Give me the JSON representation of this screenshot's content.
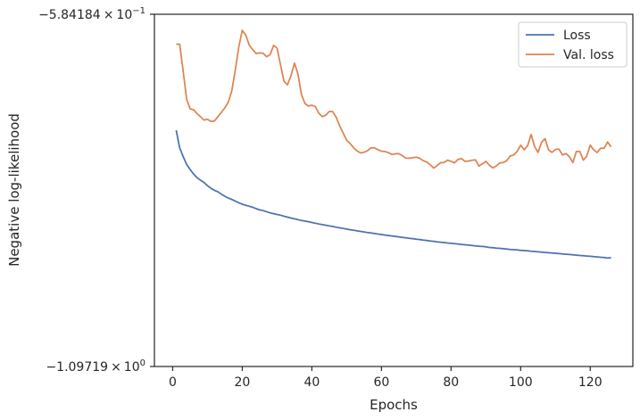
{
  "chart_data": {
    "type": "line",
    "title": "",
    "xlabel": "Epochs",
    "ylabel": "Negative log-likelihood",
    "xlim": [
      -5.25,
      132.25
    ],
    "x_ticks": [
      0,
      20,
      40,
      60,
      80,
      100,
      120
    ],
    "x_tick_labels": [
      "0",
      "20",
      "40",
      "60",
      "80",
      "100",
      "120"
    ],
    "ylim": [
      -1.09719,
      -0.584184
    ],
    "yscale": "symlog-like (top/bottom only labelled)",
    "y_tick_labels": {
      "top": {
        "mantissa": "−5.84184",
        "times": "×",
        "base": "10",
        "exp": "−1"
      },
      "bottom": {
        "mantissa": "−1.09719",
        "times": "×",
        "base": "10",
        "exp": "0"
      }
    },
    "legend": {
      "position": "top-right",
      "entries": [
        "Loss",
        "Val. loss"
      ]
    },
    "grid": false,
    "colors": {
      "Loss": "#4c72b0",
      "Val. loss": "#dd8452"
    },
    "series": [
      {
        "name": "Loss",
        "x": [
          1,
          2,
          3,
          4,
          5,
          6,
          7,
          8,
          9,
          10,
          11,
          12,
          13,
          14,
          15,
          16,
          17,
          18,
          19,
          20,
          21,
          22,
          23,
          24,
          25,
          26,
          27,
          28,
          29,
          30,
          31,
          32,
          33,
          34,
          35,
          36,
          37,
          38,
          39,
          40,
          41,
          42,
          43,
          44,
          45,
          46,
          47,
          48,
          49,
          50,
          51,
          52,
          53,
          54,
          55,
          56,
          57,
          58,
          59,
          60,
          61,
          62,
          63,
          64,
          65,
          66,
          67,
          68,
          69,
          70,
          71,
          72,
          73,
          74,
          75,
          76,
          77,
          78,
          79,
          80,
          81,
          82,
          83,
          84,
          85,
          86,
          87,
          88,
          89,
          90,
          91,
          92,
          93,
          94,
          95,
          96,
          97,
          98,
          99,
          100,
          101,
          102,
          103,
          104,
          105,
          106,
          107,
          108,
          109,
          110,
          111,
          112,
          113,
          114,
          115,
          116,
          117,
          118,
          119,
          120,
          121,
          122,
          123,
          124,
          125,
          126
        ],
        "values": [
          -0.7532,
          -0.7787,
          -0.7915,
          -0.8028,
          -0.8103,
          -0.8169,
          -0.8223,
          -0.8259,
          -0.8291,
          -0.8338,
          -0.8376,
          -0.8405,
          -0.8428,
          -0.8462,
          -0.8492,
          -0.8518,
          -0.8539,
          -0.8563,
          -0.8587,
          -0.8608,
          -0.8624,
          -0.8638,
          -0.8652,
          -0.8673,
          -0.8691,
          -0.8702,
          -0.8717,
          -0.8734,
          -0.8746,
          -0.8758,
          -0.8768,
          -0.8783,
          -0.8797,
          -0.881,
          -0.8821,
          -0.8833,
          -0.8846,
          -0.8854,
          -0.8863,
          -0.8875,
          -0.8885,
          -0.8896,
          -0.8905,
          -0.8915,
          -0.8924,
          -0.8933,
          -0.8943,
          -0.8952,
          -0.8961,
          -0.897,
          -0.898,
          -0.8988,
          -0.8996,
          -0.9004,
          -0.9012,
          -0.9021,
          -0.9028,
          -0.9036,
          -0.9043,
          -0.905,
          -0.9057,
          -0.9064,
          -0.907,
          -0.9077,
          -0.9084,
          -0.9091,
          -0.9097,
          -0.9104,
          -0.911,
          -0.9117,
          -0.9123,
          -0.913,
          -0.9136,
          -0.9143,
          -0.9149,
          -0.9156,
          -0.9161,
          -0.9167,
          -0.9173,
          -0.9178,
          -0.9183,
          -0.9188,
          -0.9194,
          -0.9199,
          -0.9204,
          -0.9209,
          -0.9215,
          -0.922,
          -0.9224,
          -0.9229,
          -0.9238,
          -0.9242,
          -0.9247,
          -0.9251,
          -0.9256,
          -0.9261,
          -0.9266,
          -0.927,
          -0.9275,
          -0.9279,
          -0.9284,
          -0.9288,
          -0.9293,
          -0.9297,
          -0.9302,
          -0.9306,
          -0.9311,
          -0.9315,
          -0.9319,
          -0.9323,
          -0.9328,
          -0.9333,
          -0.9337,
          -0.9341,
          -0.9345,
          -0.935,
          -0.9355,
          -0.9359,
          -0.9363,
          -0.9367,
          -0.9372,
          -0.9376,
          -0.9381,
          -0.9385,
          -0.9392,
          -0.9387
        ]
      },
      {
        "name": "Val. loss",
        "x": [
          1,
          2,
          3,
          4,
          5,
          6,
          7,
          8,
          9,
          10,
          11,
          12,
          13,
          14,
          15,
          16,
          17,
          18,
          19,
          20,
          21,
          22,
          23,
          24,
          25,
          26,
          27,
          28,
          29,
          30,
          31,
          32,
          33,
          34,
          35,
          36,
          37,
          38,
          39,
          40,
          41,
          42,
          43,
          44,
          45,
          46,
          47,
          48,
          49,
          50,
          51,
          52,
          53,
          54,
          55,
          56,
          57,
          58,
          59,
          60,
          61,
          62,
          63,
          64,
          65,
          66,
          67,
          68,
          69,
          70,
          71,
          72,
          73,
          74,
          75,
          76,
          77,
          78,
          79,
          80,
          81,
          82,
          83,
          84,
          85,
          86,
          87,
          88,
          89,
          90,
          91,
          92,
          93,
          94,
          95,
          96,
          97,
          98,
          99,
          100,
          101,
          102,
          103,
          104,
          105,
          106,
          107,
          108,
          109,
          110,
          111,
          112,
          113,
          114,
          115,
          116,
          117,
          118,
          119,
          120,
          121,
          122,
          123,
          124,
          125,
          126
        ],
        "values": [
          -0.6277,
          -0.6278,
          -0.6668,
          -0.7079,
          -0.722,
          -0.7233,
          -0.729,
          -0.7335,
          -0.7382,
          -0.737,
          -0.7401,
          -0.7396,
          -0.7334,
          -0.7271,
          -0.7205,
          -0.7121,
          -0.6956,
          -0.6655,
          -0.6322,
          -0.6076,
          -0.6145,
          -0.6289,
          -0.6358,
          -0.6413,
          -0.6406,
          -0.6411,
          -0.646,
          -0.643,
          -0.6295,
          -0.6336,
          -0.658,
          -0.682,
          -0.6869,
          -0.6735,
          -0.6554,
          -0.6709,
          -0.7008,
          -0.714,
          -0.7178,
          -0.7166,
          -0.7187,
          -0.7284,
          -0.7333,
          -0.7311,
          -0.7258,
          -0.7261,
          -0.7345,
          -0.7469,
          -0.7574,
          -0.7678,
          -0.7725,
          -0.7786,
          -0.7834,
          -0.7862,
          -0.7851,
          -0.7828,
          -0.7786,
          -0.7788,
          -0.7815,
          -0.7837,
          -0.784,
          -0.7858,
          -0.7883,
          -0.7874,
          -0.7871,
          -0.79,
          -0.7937,
          -0.7939,
          -0.7931,
          -0.7924,
          -0.7938,
          -0.7974,
          -0.7994,
          -0.8032,
          -0.8082,
          -0.8046,
          -0.8003,
          -0.8002,
          -0.7966,
          -0.7983,
          -0.8006,
          -0.7956,
          -0.7943,
          -0.7984,
          -0.7979,
          -0.7968,
          -0.7961,
          -0.8052,
          -0.8021,
          -0.7984,
          -0.8039,
          -0.808,
          -0.8051,
          -0.8007,
          -0.8001,
          -0.7975,
          -0.7907,
          -0.789,
          -0.7839,
          -0.7748,
          -0.7816,
          -0.7756,
          -0.7593,
          -0.7768,
          -0.7853,
          -0.7707,
          -0.7654,
          -0.7816,
          -0.7853,
          -0.7809,
          -0.7805,
          -0.7891,
          -0.787,
          -0.7916,
          -0.8,
          -0.7841,
          -0.784,
          -0.7966,
          -0.7911,
          -0.7749,
          -0.7816,
          -0.7856,
          -0.7793,
          -0.7792,
          -0.7701,
          -0.7773
        ]
      }
    ]
  }
}
